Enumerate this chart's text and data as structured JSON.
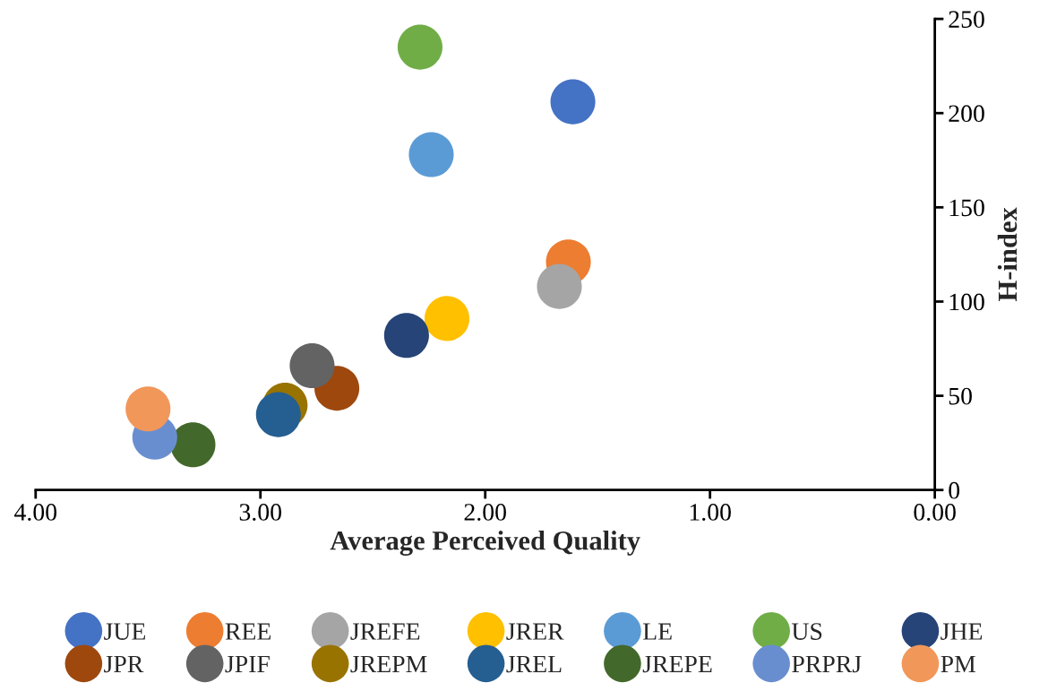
{
  "chart_data": {
    "type": "scatter",
    "xlabel": "Average Perceived Quality",
    "ylabel": "H-index",
    "xlim": [
      4,
      0
    ],
    "xticks": [
      {
        "value": 4,
        "label": "4.00"
      },
      {
        "value": 3,
        "label": "3.00"
      },
      {
        "value": 2,
        "label": "2.00"
      },
      {
        "value": 1,
        "label": "1.00"
      },
      {
        "value": 0,
        "label": "0.00"
      }
    ],
    "ylim": [
      0,
      250
    ],
    "yticks": [
      0,
      50,
      100,
      150,
      200,
      250
    ],
    "grid": false,
    "legend": "bottom",
    "marker": "circle",
    "series": [
      {
        "name": "JUE",
        "color": "#4472c4",
        "x": [
          1.61
        ],
        "values": [
          206
        ]
      },
      {
        "name": "REE",
        "color": "#ed7d31",
        "x": [
          1.63
        ],
        "values": [
          121
        ]
      },
      {
        "name": "JREFE",
        "color": "#a5a5a5",
        "x": [
          1.67
        ],
        "values": [
          108
        ]
      },
      {
        "name": "JRER",
        "color": "#ffc000",
        "x": [
          2.17
        ],
        "values": [
          91
        ]
      },
      {
        "name": "LE",
        "color": "#5b9bd5",
        "x": [
          2.24
        ],
        "values": [
          178
        ]
      },
      {
        "name": "US",
        "color": "#70ad47",
        "x": [
          2.29
        ],
        "values": [
          235
        ]
      },
      {
        "name": "JHE",
        "color": "#264478",
        "x": [
          2.35
        ],
        "values": [
          82
        ]
      },
      {
        "name": "JPR",
        "color": "#9e480e",
        "x": [
          2.66
        ],
        "values": [
          54
        ]
      },
      {
        "name": "JPIF",
        "color": "#636363",
        "x": [
          2.77
        ],
        "values": [
          66
        ]
      },
      {
        "name": "JREPM",
        "color": "#997300",
        "x": [
          2.89
        ],
        "values": [
          45
        ]
      },
      {
        "name": "JREL",
        "color": "#255e91",
        "x": [
          2.92
        ],
        "values": [
          40
        ]
      },
      {
        "name": "JREPE",
        "color": "#43682b",
        "x": [
          3.3
        ],
        "values": [
          24
        ]
      },
      {
        "name": "PRPRJ",
        "color": "#698ed0",
        "x": [
          3.47
        ],
        "values": [
          28
        ]
      },
      {
        "name": "PM",
        "color": "#f1975a",
        "x": [
          3.5
        ],
        "values": [
          43
        ]
      }
    ]
  }
}
